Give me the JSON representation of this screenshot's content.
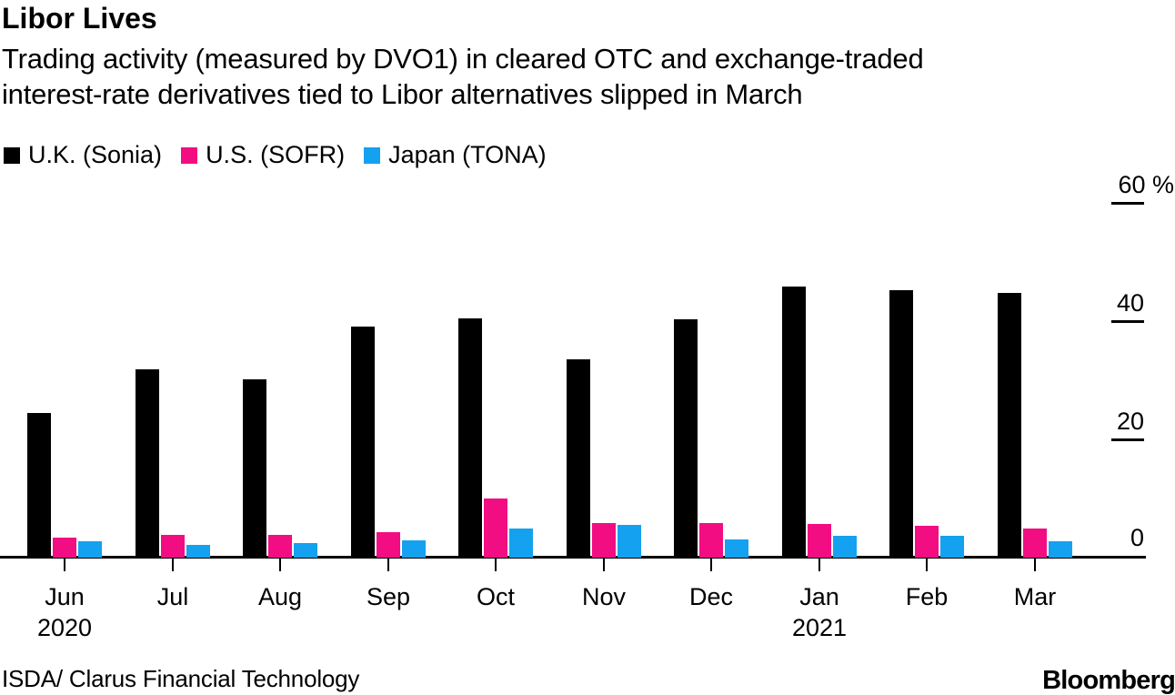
{
  "header": {
    "title": "Libor Lives",
    "subtitle_line1": "Trading activity (measured by DVO1) in cleared OTC and exchange-traded",
    "subtitle_line2": "interest-rate derivatives tied to Libor alternatives slipped in March"
  },
  "chart_data": {
    "type": "bar",
    "categories": [
      "Jun",
      "Jul",
      "Aug",
      "Sep",
      "Oct",
      "Nov",
      "Dec",
      "Jan",
      "Feb",
      "Mar"
    ],
    "year_labels": [
      {
        "index": 0,
        "label": "2020"
      },
      {
        "index": 7,
        "label": "2021"
      }
    ],
    "series": [
      {
        "name": "U.K. (Sonia)",
        "color": "#000000",
        "values": [
          24.5,
          31.8,
          30.2,
          39.0,
          40.5,
          33.6,
          40.3,
          45.8,
          45.3,
          44.8
        ]
      },
      {
        "name": "U.S. (SOFR)",
        "color": "#f20d82",
        "values": [
          3.4,
          3.8,
          3.8,
          4.3,
          10.0,
          5.8,
          5.8,
          5.7,
          5.4,
          4.9
        ]
      },
      {
        "name": "Japan (TONA)",
        "color": "#14a1f0",
        "values": [
          2.8,
          2.2,
          2.5,
          2.9,
          4.9,
          5.5,
          3.1,
          3.7,
          3.7,
          2.8
        ]
      }
    ],
    "title": "Libor Lives",
    "xlabel": "",
    "ylabel": "",
    "y_unit": "%",
    "yticks": [
      0,
      20,
      40,
      60
    ],
    "ylim": [
      0,
      60
    ],
    "grid": false,
    "legend_position": "top-left",
    "axis_color": "#000000",
    "background_color": "#ffffff"
  },
  "footer": {
    "source": "ISDA/ Clarus Financial Technology",
    "brand": "Bloomberg"
  }
}
